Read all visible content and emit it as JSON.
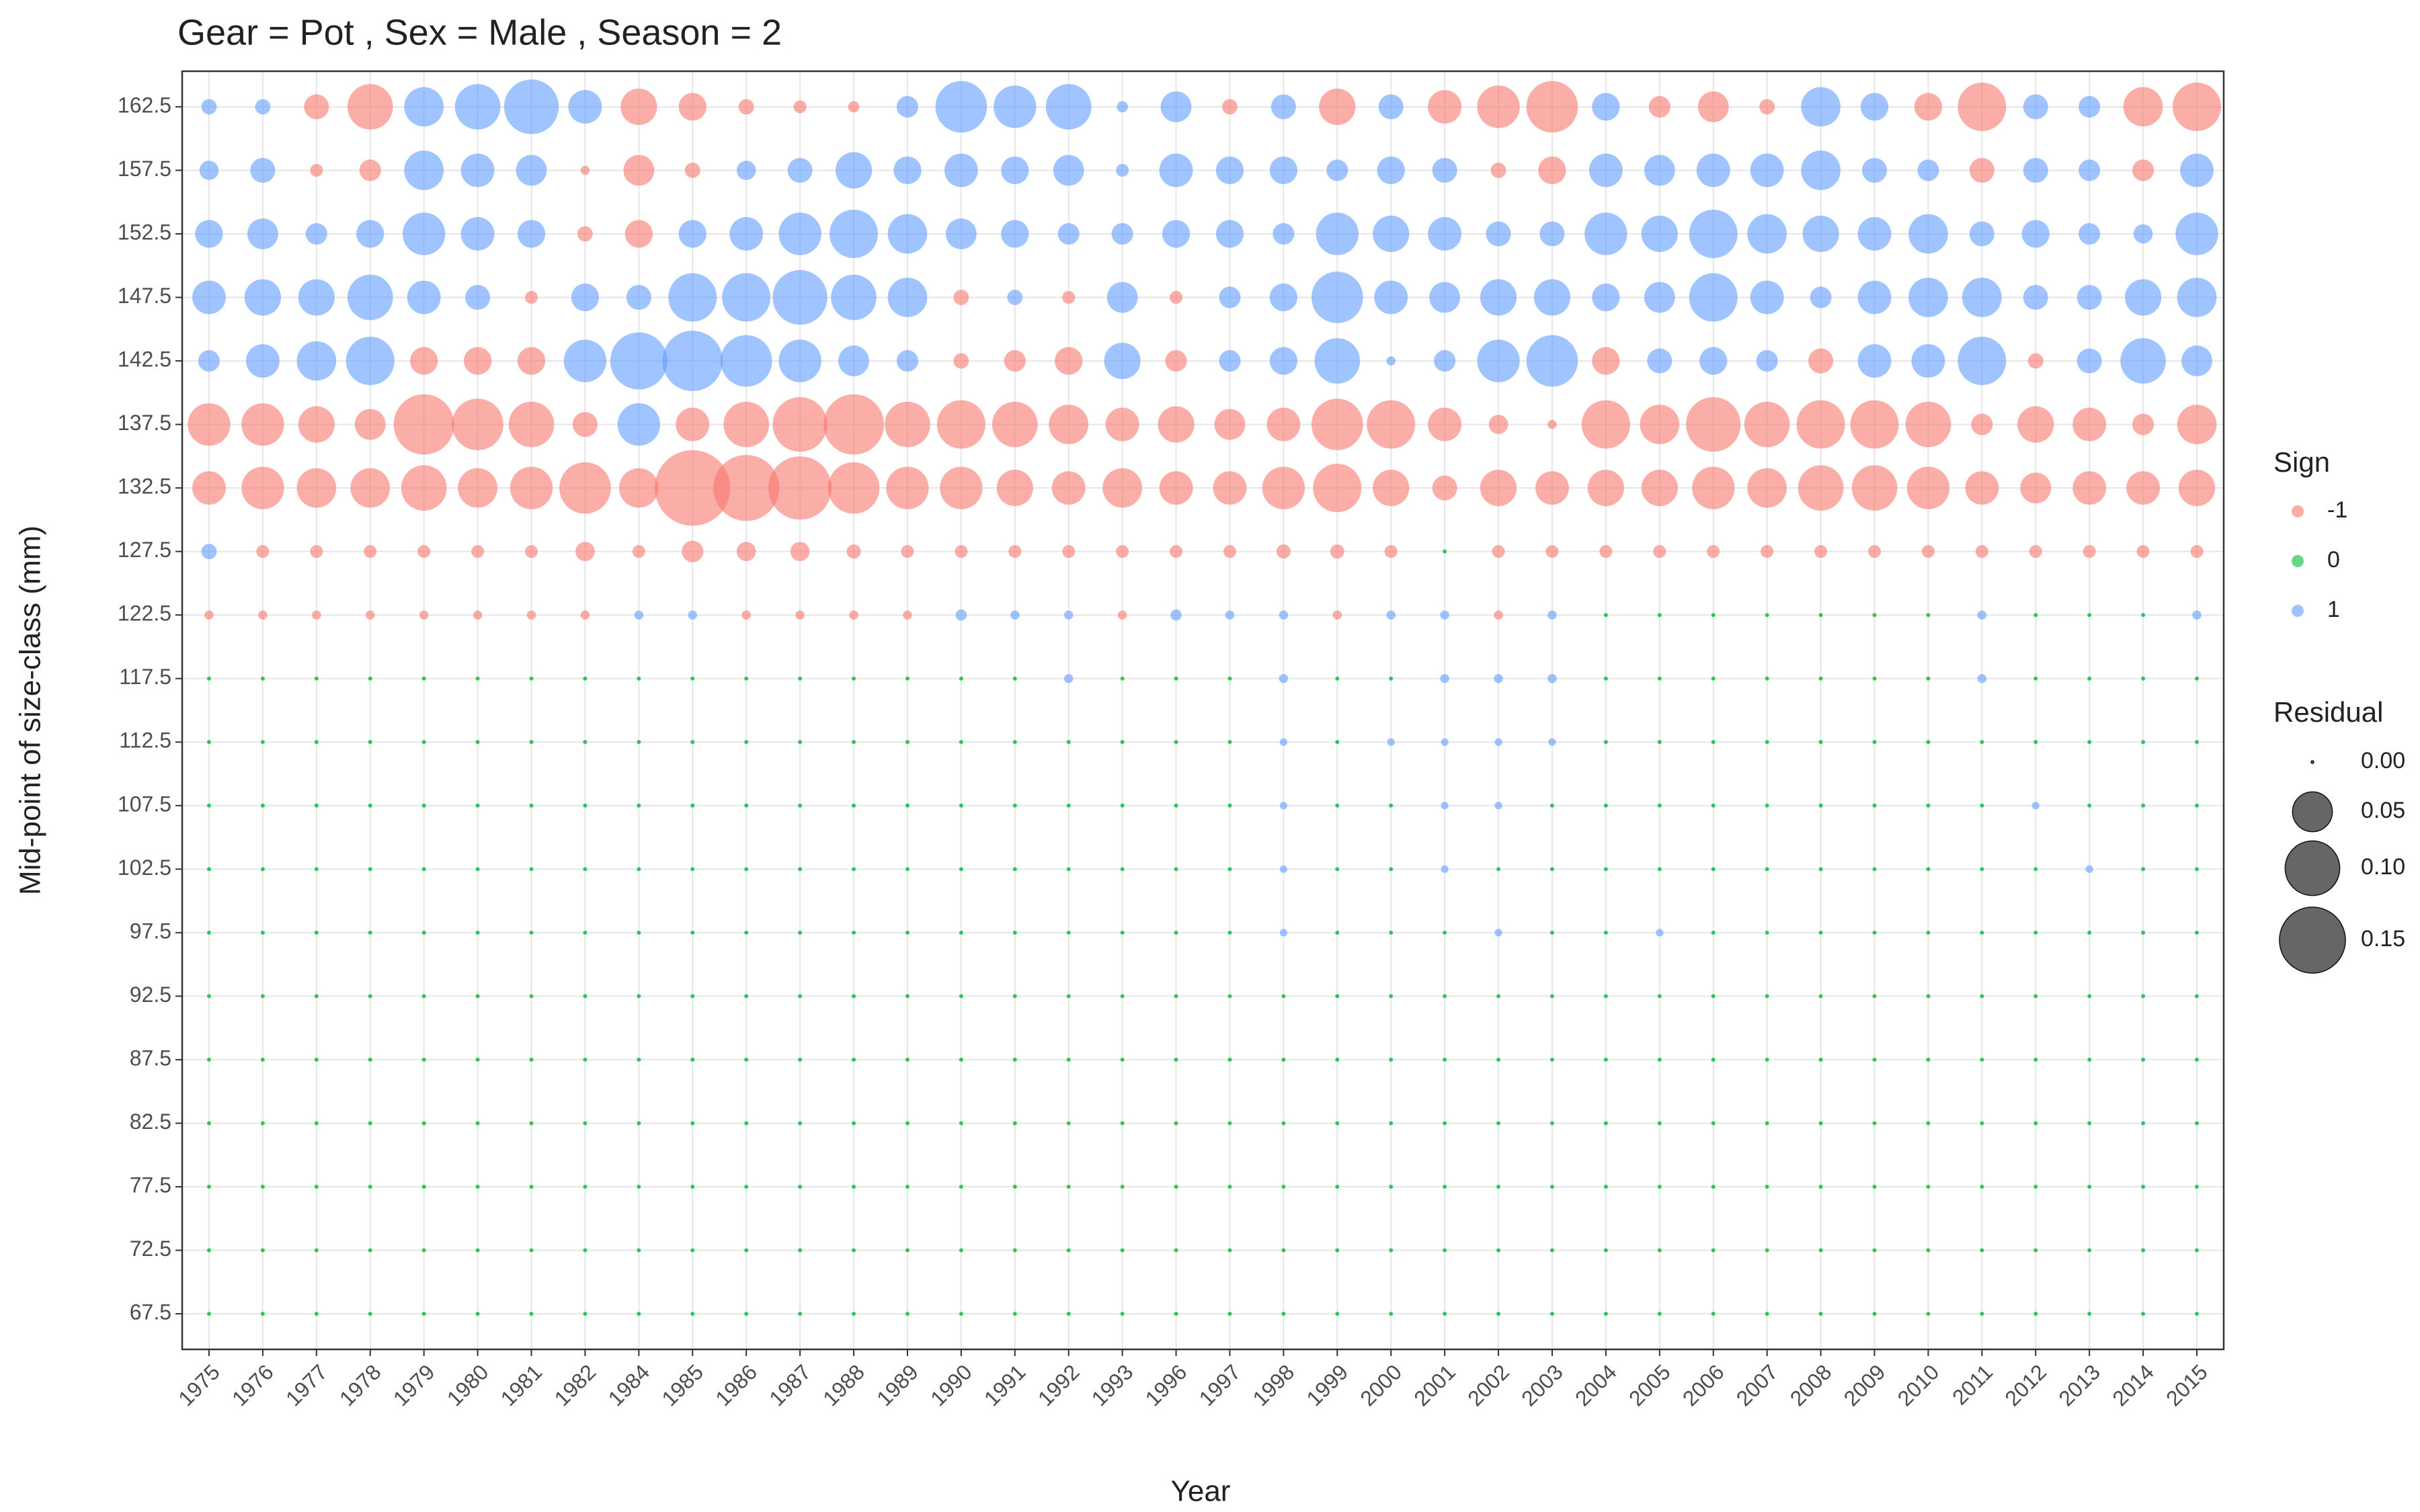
{
  "chart_data": {
    "type": "bubble",
    "title": "Gear = Pot , Sex = Male , Season = 2",
    "x_label": "Year",
    "y_label": "Mid-point of size-class (mm)",
    "categories": [
      "1975",
      "1976",
      "1977",
      "1978",
      "1979",
      "1980",
      "1981",
      "1982",
      "1984",
      "1985",
      "1986",
      "1987",
      "1988",
      "1989",
      "1990",
      "1991",
      "1992",
      "1993",
      "1996",
      "1997",
      "1998",
      "1999",
      "2000",
      "2001",
      "2002",
      "2003",
      "2004",
      "2005",
      "2006",
      "2007",
      "2008",
      "2009",
      "2010",
      "2011",
      "2012",
      "2013",
      "2014",
      "2015"
    ],
    "ylim": [
      64.7,
      165.3
    ],
    "yticks": [
      67.5,
      72.5,
      77.5,
      82.5,
      87.5,
      92.5,
      97.5,
      102.5,
      107.5,
      112.5,
      117.5,
      122.5,
      127.5,
      132.5,
      137.5,
      142.5,
      147.5,
      152.5,
      157.5,
      162.5
    ],
    "grid": true,
    "residuals": [
      [
        0,
        0,
        0,
        0,
        0,
        0,
        0,
        0,
        0,
        0,
        0,
        0,
        0,
        0,
        0,
        0,
        0,
        0,
        0,
        0,
        0,
        0,
        0,
        0,
        0,
        0,
        0,
        0,
        0,
        0,
        0,
        0,
        0,
        0,
        0,
        0,
        0,
        0
      ],
      [
        0,
        0,
        0,
        0,
        0,
        0,
        0,
        0,
        0,
        0,
        0,
        0,
        0,
        0,
        0,
        0,
        0,
        0,
        0,
        0,
        0,
        0,
        0,
        0,
        0,
        0,
        0,
        0,
        0,
        0,
        0,
        0,
        0,
        0,
        0,
        0,
        0,
        0
      ],
      [
        0,
        0,
        0,
        0,
        0,
        0,
        0,
        0,
        0,
        0,
        0,
        0,
        0,
        0,
        0,
        0,
        0,
        0,
        0,
        0,
        0,
        0,
        0,
        0,
        0,
        0,
        0,
        0,
        0,
        0,
        0,
        0,
        0,
        0,
        0,
        0,
        0,
        0
      ],
      [
        0,
        0,
        0,
        0,
        0,
        0,
        0,
        0,
        0,
        0,
        0,
        0,
        0,
        0,
        0,
        0,
        0,
        0,
        0,
        0,
        0,
        0,
        0,
        0,
        0,
        0,
        0,
        0,
        0,
        0,
        0,
        0,
        0,
        0,
        0,
        0,
        0,
        0
      ],
      [
        0,
        0,
        0,
        0,
        0,
        0,
        0,
        0,
        0,
        0,
        0,
        0,
        0,
        0,
        0,
        0,
        0,
        0,
        0,
        0,
        0,
        0,
        0,
        0,
        0,
        0,
        0,
        0,
        0,
        0,
        0,
        0,
        0,
        0,
        0,
        0,
        0,
        0
      ],
      [
        0,
        0,
        0,
        0,
        0,
        0,
        0,
        0,
        0,
        0,
        0,
        0,
        0,
        0,
        0,
        0,
        0,
        0,
        0,
        0,
        0,
        0,
        0,
        0,
        0,
        0,
        0,
        0,
        0,
        0,
        0,
        0,
        0,
        0,
        0,
        0,
        0,
        0
      ],
      [
        0,
        0,
        0,
        0,
        0,
        0,
        0,
        0,
        0,
        0,
        0,
        0,
        0,
        0,
        0,
        0,
        0,
        0,
        0,
        0,
        0.0005,
        0,
        0,
        0,
        0.0005,
        0,
        0,
        0.0005,
        0,
        0,
        0,
        0,
        0,
        0,
        0,
        0,
        0,
        0
      ],
      [
        0,
        0,
        0,
        0,
        0,
        0,
        0,
        0,
        0,
        0,
        0,
        0,
        0,
        0,
        0,
        0,
        0,
        0,
        0,
        0,
        0.0005,
        0,
        0,
        0.0005,
        0,
        0,
        0,
        0,
        0,
        0,
        0,
        0,
        0,
        0,
        0,
        0.0005,
        0,
        0
      ],
      [
        0,
        0,
        0,
        0,
        0,
        0,
        0,
        0,
        0,
        0,
        0,
        0,
        0,
        0,
        0,
        0,
        0,
        0,
        0,
        0,
        0.0005,
        0,
        0,
        0.0005,
        0.0005,
        0,
        0,
        0,
        0,
        0,
        0,
        0,
        0,
        0,
        0.0005,
        0,
        0,
        0
      ],
      [
        0,
        0,
        0,
        0,
        0,
        0,
        0,
        0,
        0,
        0,
        0,
        0,
        0,
        0,
        0,
        0,
        0,
        0,
        0,
        0,
        0.0005,
        0,
        0.0005,
        0.0005,
        0.0005,
        0.0005,
        0,
        0,
        0,
        0,
        0,
        0,
        0,
        0,
        0,
        0,
        0,
        0
      ],
      [
        0,
        0,
        0,
        0,
        0,
        0,
        0,
        0,
        0,
        0,
        0,
        0,
        0,
        0,
        0,
        0,
        0.001,
        0,
        0,
        0,
        0.001,
        0,
        0,
        0.001,
        0.001,
        0.001,
        0,
        0,
        0,
        0,
        0,
        0,
        0,
        0.001,
        0,
        0,
        0,
        0
      ],
      [
        -0.001,
        -0.001,
        -0.001,
        -0.001,
        -0.001,
        -0.001,
        -0.001,
        -0.001,
        0.001,
        0.001,
        -0.001,
        -0.001,
        -0.001,
        -0.001,
        0.002,
        0.001,
        0.001,
        -0.001,
        0.002,
        0.001,
        0.001,
        -0.001,
        0.001,
        0.001,
        -0.001,
        0.001,
        0,
        0,
        0,
        0,
        0,
        0,
        0,
        0.001,
        0,
        0,
        0,
        0.001
      ],
      [
        0.005,
        -0.003,
        -0.003,
        -0.003,
        -0.003,
        -0.003,
        -0.003,
        -0.009,
        -0.003,
        -0.012,
        -0.009,
        -0.009,
        -0.004,
        -0.003,
        -0.003,
        -0.003,
        -0.003,
        -0.003,
        -0.003,
        -0.003,
        -0.004,
        -0.004,
        -0.003,
        0,
        -0.003,
        -0.003,
        -0.003,
        -0.003,
        -0.003,
        -0.003,
        -0.003,
        -0.003,
        -0.003,
        -0.003,
        -0.003,
        -0.003,
        -0.003,
        -0.003
      ],
      [
        -0.034,
        -0.058,
        -0.049,
        -0.049,
        -0.067,
        -0.049,
        -0.058,
        -0.088,
        -0.049,
        -0.2,
        -0.15,
        -0.137,
        -0.088,
        -0.058,
        -0.058,
        -0.041,
        -0.034,
        -0.049,
        -0.034,
        -0.034,
        -0.058,
        -0.077,
        -0.041,
        -0.017,
        -0.041,
        -0.034,
        -0.041,
        -0.041,
        -0.058,
        -0.049,
        -0.067,
        -0.067,
        -0.058,
        -0.034,
        -0.028,
        -0.034,
        -0.034,
        -0.041
      ],
      [
        -0.058,
        -0.058,
        -0.041,
        -0.028,
        -0.124,
        -0.088,
        -0.067,
        -0.017,
        0.058,
        -0.034,
        -0.067,
        -0.1,
        -0.124,
        -0.067,
        -0.077,
        -0.067,
        -0.049,
        -0.034,
        -0.041,
        -0.028,
        -0.034,
        -0.088,
        -0.077,
        -0.034,
        -0.009,
        -0.001,
        -0.077,
        -0.049,
        -0.1,
        -0.067,
        -0.077,
        -0.077,
        -0.067,
        -0.012,
        -0.041,
        -0.034,
        -0.012,
        -0.049
      ],
      [
        0.012,
        0.034,
        0.049,
        0.077,
        -0.022,
        -0.022,
        -0.022,
        0.058,
        0.11,
        0.124,
        0.088,
        0.058,
        0.028,
        0.012,
        -0.005,
        -0.012,
        -0.022,
        0.041,
        -0.012,
        0.012,
        0.022,
        0.067,
        0.001,
        0.012,
        0.058,
        0.088,
        -0.022,
        0.017,
        0.022,
        0.012,
        -0.017,
        0.034,
        0.034,
        0.077,
        -0.005,
        0.017,
        0.067,
        0.028
      ],
      [
        0.034,
        0.041,
        0.041,
        0.067,
        0.034,
        0.017,
        -0.003,
        0.022,
        0.017,
        0.077,
        0.077,
        0.1,
        0.067,
        0.049,
        -0.005,
        0.005,
        -0.003,
        0.028,
        -0.003,
        0.012,
        0.022,
        0.088,
        0.034,
        0.028,
        0.041,
        0.041,
        0.022,
        0.028,
        0.077,
        0.034,
        0.012,
        0.034,
        0.049,
        0.049,
        0.017,
        0.017,
        0.041,
        0.049
      ],
      [
        0.022,
        0.028,
        0.012,
        0.022,
        0.058,
        0.034,
        0.022,
        -0.005,
        -0.022,
        0.022,
        0.034,
        0.058,
        0.077,
        0.049,
        0.028,
        0.022,
        0.012,
        0.012,
        0.022,
        0.022,
        0.012,
        0.058,
        0.041,
        0.034,
        0.017,
        0.017,
        0.058,
        0.041,
        0.077,
        0.049,
        0.041,
        0.034,
        0.049,
        0.017,
        0.022,
        0.012,
        0.009,
        0.058
      ],
      [
        0.009,
        0.017,
        -0.003,
        -0.012,
        0.049,
        0.034,
        0.028,
        -0.001,
        -0.028,
        -0.005,
        0.009,
        0.017,
        0.041,
        0.022,
        0.034,
        0.022,
        0.028,
        0.003,
        0.034,
        0.022,
        0.022,
        0.012,
        0.022,
        0.017,
        -0.005,
        -0.022,
        0.034,
        0.028,
        0.034,
        0.034,
        0.049,
        0.017,
        0.012,
        -0.017,
        0.017,
        0.012,
        -0.012,
        0.034
      ],
      [
        0.005,
        0.005,
        -0.017,
        -0.067,
        0.049,
        0.067,
        0.1,
        0.034,
        -0.041,
        -0.022,
        -0.005,
        -0.003,
        -0.002,
        0.012,
        0.088,
        0.058,
        0.067,
        0.002,
        0.028,
        -0.005,
        0.017,
        -0.041,
        0.017,
        -0.034,
        -0.058,
        -0.088,
        0.022,
        -0.012,
        -0.028,
        -0.005,
        0.049,
        0.022,
        -0.022,
        -0.077,
        0.017,
        0.012,
        -0.049,
        -0.077
      ]
    ],
    "sign_legend": {
      "title": "Sign",
      "entries": [
        -1,
        0,
        1
      ],
      "colors": [
        "#F8766D",
        "#00BA38",
        "#619CFF"
      ]
    },
    "size_legend": {
      "title": "Residual",
      "entries": [
        {
          "value": 0,
          "label": "0.00"
        },
        0.05,
        {
          "value": 0.1,
          "label": "0.10"
        },
        0.15
      ]
    }
  }
}
